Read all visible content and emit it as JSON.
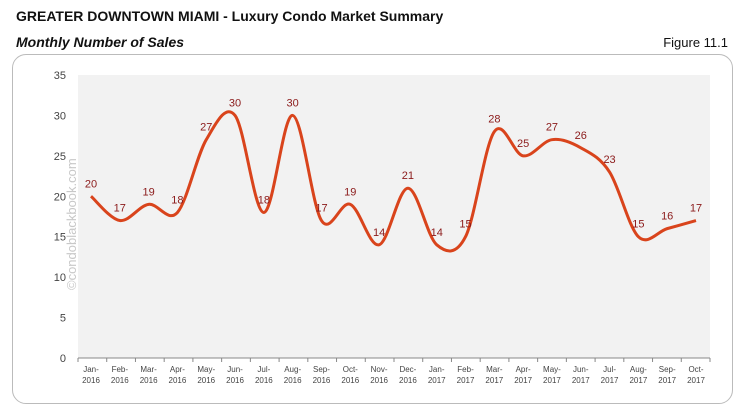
{
  "header": {
    "title": "GREATER DOWNTOWN MIAMI - Luxury Condo Market Summary",
    "subtitle": "Monthly Number of Sales",
    "figure": "Figure 11.1"
  },
  "watermark": "©condoblackbook.com",
  "chart_data": {
    "type": "line",
    "categories": [
      "Jan-2016",
      "Feb-2016",
      "Mar-2016",
      "Apr-2016",
      "May-2016",
      "Jun-2016",
      "Jul-2016",
      "Aug-2016",
      "Sep-2016",
      "Oct-2016",
      "Nov-2016",
      "Dec-2016",
      "Jan-2017",
      "Feb-2017",
      "Mar-2017",
      "Apr-2017",
      "May-2017",
      "Jun-2017",
      "Jul-2017",
      "Aug-2017",
      "Sep-2017",
      "Oct-2017"
    ],
    "values": [
      20,
      17,
      19,
      18,
      27,
      30,
      18,
      30,
      17,
      19,
      14,
      21,
      14,
      15,
      28,
      25,
      27,
      26,
      23,
      15,
      16,
      17
    ],
    "ylim": [
      0,
      35
    ],
    "yticks": [
      0,
      5,
      10,
      15,
      20,
      25,
      30,
      35
    ],
    "smooth": true,
    "data_labels": true,
    "grid": false,
    "line_color": "#d9441c",
    "label_color": "#8b1a1a",
    "plot_bg": "#f2f2f2"
  }
}
